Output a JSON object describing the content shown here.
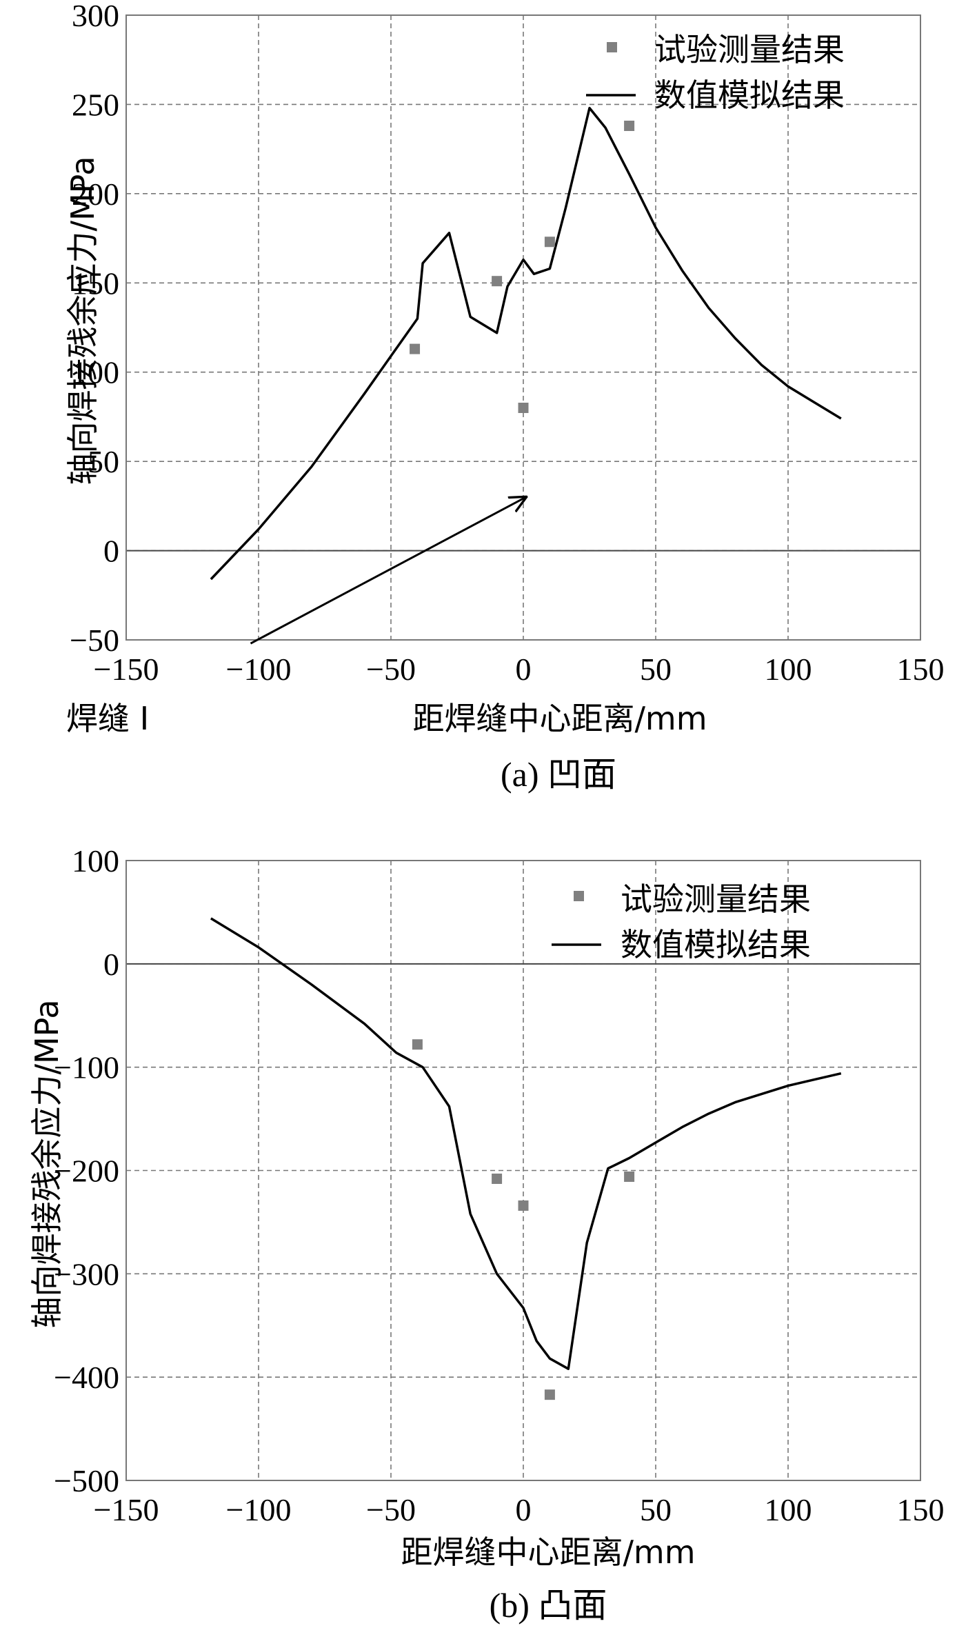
{
  "chart_data": [
    {
      "type": "scatter+line",
      "id": "a",
      "title": "",
      "caption": "(a) 凹面",
      "xlabel": "距焊缝中心距离/mm",
      "ylabel": "轴向焊接残余应力/MPa",
      "xlim": [
        -150,
        150
      ],
      "ylim": [
        -50,
        300
      ],
      "xticks": [
        -150,
        -100,
        -50,
        0,
        50,
        100,
        150
      ],
      "yticks": [
        -50,
        0,
        50,
        100,
        150,
        200,
        250,
        300
      ],
      "xtick_labels": [
        "−150",
        "−100",
        "−50",
        "0",
        "50",
        "100",
        "150"
      ],
      "ytick_labels": [
        "−50",
        "0",
        "50",
        "100",
        "150",
        "200",
        "250",
        "300"
      ],
      "grid": true,
      "legend_position": "top-right",
      "annotation": {
        "text": "焊缝 I",
        "arrow_from": [
          -103,
          -52
        ],
        "arrow_to": [
          1,
          30
        ]
      },
      "series": [
        {
          "name": "试验测量结果",
          "kind": "scatter",
          "x": [
            -41,
            -10,
            0,
            10,
            40
          ],
          "y": [
            113,
            151,
            80,
            173,
            238
          ]
        },
        {
          "name": "数值模拟结果",
          "kind": "line",
          "x": [
            -118,
            -100,
            -80,
            -60,
            -50,
            -40,
            -38,
            -28,
            -20,
            -10,
            -6,
            0,
            4,
            10,
            16,
            25,
            31,
            40,
            50,
            60,
            70,
            80,
            90,
            100,
            110,
            120
          ],
          "y": [
            -16,
            12,
            47,
            88,
            109,
            130,
            161,
            178,
            131,
            122,
            148,
            163,
            155,
            158,
            192,
            248,
            237,
            211,
            181,
            157,
            136,
            119,
            104,
            92,
            83,
            74
          ]
        }
      ]
    },
    {
      "type": "scatter+line",
      "id": "b",
      "title": "",
      "caption": "(b) 凸面",
      "xlabel": "距焊缝中心距离/mm",
      "ylabel": "轴向焊接残余应力/MPa",
      "xlim": [
        -150,
        150
      ],
      "ylim": [
        -500,
        100
      ],
      "xticks": [
        -150,
        -100,
        -50,
        0,
        50,
        100,
        150
      ],
      "yticks": [
        -500,
        -400,
        -300,
        -200,
        -100,
        0,
        100
      ],
      "xtick_labels": [
        "−150",
        "−100",
        "−50",
        "0",
        "50",
        "100",
        "150"
      ],
      "ytick_labels": [
        "−500",
        "−400",
        "−300",
        "−200",
        "−100",
        "0",
        "100"
      ],
      "grid": true,
      "legend_position": "top-right",
      "series": [
        {
          "name": "试验测量结果",
          "kind": "scatter",
          "x": [
            -40,
            -10,
            0,
            10,
            40
          ],
          "y": [
            -78,
            -208,
            -234,
            -417,
            -206
          ]
        },
        {
          "name": "数值模拟结果",
          "kind": "line",
          "x": [
            -118,
            -100,
            -80,
            -60,
            -48,
            -38,
            -28,
            -20,
            -10,
            0,
            5,
            10,
            17,
            24,
            32,
            40,
            50,
            60,
            70,
            80,
            90,
            100,
            110,
            120
          ],
          "y": [
            44,
            16,
            -20,
            -58,
            -86,
            -100,
            -138,
            -242,
            -300,
            -333,
            -365,
            -382,
            -392,
            -270,
            -198,
            -188,
            -173,
            -158,
            -145,
            -134,
            -126,
            -118,
            -112,
            -106
          ]
        }
      ]
    }
  ]
}
